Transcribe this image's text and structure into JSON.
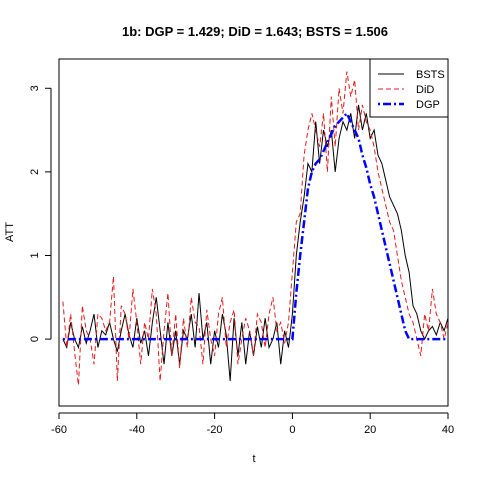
{
  "chart_data": {
    "type": "line",
    "title": "1b: DGP = 1.429; DiD = 1.643;  BSTS = 1.506",
    "xlabel": "t",
    "ylabel": "ATT",
    "xlim": [
      -60,
      40
    ],
    "ylim": [
      -0.8,
      3.35
    ],
    "x_ticks": [
      -60,
      -40,
      -20,
      0,
      20,
      40
    ],
    "y_ticks": [
      0,
      1,
      2,
      3
    ],
    "grid": false,
    "legend_position": "top-right",
    "x": [
      -59,
      -58,
      -57,
      -56,
      -55,
      -54,
      -53,
      -52,
      -51,
      -50,
      -49,
      -48,
      -47,
      -46,
      -45,
      -44,
      -43,
      -42,
      -41,
      -40,
      -39,
      -38,
      -37,
      -36,
      -35,
      -34,
      -33,
      -32,
      -31,
      -30,
      -29,
      -28,
      -27,
      -26,
      -25,
      -24,
      -23,
      -22,
      -21,
      -20,
      -19,
      -18,
      -17,
      -16,
      -15,
      -14,
      -13,
      -12,
      -11,
      -10,
      -9,
      -8,
      -7,
      -6,
      -5,
      -4,
      -3,
      -2,
      -1,
      0,
      1,
      2,
      3,
      4,
      5,
      6,
      7,
      8,
      9,
      10,
      11,
      12,
      13,
      14,
      15,
      16,
      17,
      18,
      19,
      20,
      21,
      22,
      23,
      24,
      25,
      26,
      27,
      28,
      29,
      30,
      31,
      32,
      33,
      34,
      35,
      36,
      37,
      38,
      39,
      40
    ],
    "series": [
      {
        "name": "BSTS",
        "color": "#000000",
        "dash": "solid",
        "values": [
          0.0,
          -0.1,
          0.2,
          0.0,
          -0.1,
          0.15,
          -0.05,
          0.1,
          0.3,
          -0.1,
          0.1,
          0.05,
          0.2,
          0.0,
          -0.15,
          0.1,
          0.3,
          0.05,
          -0.1,
          0.25,
          -0.05,
          0.1,
          -0.2,
          0.2,
          0.5,
          0.1,
          -0.3,
          0.2,
          -0.2,
          0.1,
          -0.3,
          0.1,
          0.0,
          0.3,
          -0.1,
          0.55,
          0.0,
          0.2,
          -0.3,
          0.1,
          -0.1,
          0.3,
          0.05,
          -0.5,
          0.25,
          -0.2,
          0.2,
          -0.3,
          0.1,
          -0.2,
          0.15,
          -0.1,
          0.25,
          -0.1,
          0.0,
          0.2,
          -0.3,
          0.1,
          -0.1,
          0.3,
          1.0,
          1.4,
          1.7,
          2.1,
          2.0,
          2.6,
          2.1,
          2.5,
          2.3,
          2.5,
          2.0,
          2.4,
          2.6,
          2.5,
          2.7,
          2.4,
          2.8,
          2.5,
          2.7,
          2.4,
          2.5,
          2.2,
          2.1,
          1.9,
          1.7,
          1.6,
          1.5,
          1.3,
          1.0,
          0.8,
          0.4,
          0.3,
          0.1,
          0.0,
          0.1,
          0.15,
          0.05,
          0.2,
          0.1,
          0.25
        ]
      },
      {
        "name": "DiD",
        "color": "#e41a1c",
        "dash": "dashed",
        "values": [
          0.45,
          -0.1,
          0.3,
          -0.15,
          -0.55,
          0.4,
          0.1,
          0.0,
          -0.3,
          0.3,
          0.25,
          0.1,
          0.2,
          0.75,
          -0.5,
          0.4,
          0.3,
          0.0,
          0.6,
          0.2,
          -0.3,
          0.2,
          0.0,
          0.6,
          0.3,
          -0.5,
          0.1,
          0.55,
          -0.2,
          0.3,
          -0.35,
          0.25,
          -0.1,
          0.5,
          0.2,
          0.15,
          -0.3,
          0.35,
          0.0,
          -0.2,
          0.3,
          0.5,
          -0.1,
          0.2,
          0.35,
          -0.3,
          0.0,
          0.25,
          0.1,
          -0.2,
          0.3,
          0.2,
          -0.1,
          0.3,
          0.5,
          0.1,
          0.2,
          -0.05,
          0.2,
          0.8,
          1.4,
          1.5,
          2.2,
          2.5,
          2.7,
          2.5,
          2.3,
          2.7,
          2.0,
          2.9,
          2.3,
          3.0,
          2.7,
          3.2,
          2.9,
          3.1,
          2.5,
          2.8,
          2.6,
          2.5,
          2.3,
          2.0,
          1.8,
          1.6,
          1.4,
          1.3,
          1.0,
          0.7,
          0.5,
          0.3,
          0.2,
          0.0,
          -0.2,
          0.3,
          0.1,
          0.6,
          0.3,
          0.2,
          0.0,
          0.2
        ]
      },
      {
        "name": "DGP",
        "color": "#0000ff",
        "dash": "dotdash",
        "values": [
          0,
          0,
          0,
          0,
          0,
          0,
          0,
          0,
          0,
          0,
          0,
          0,
          0,
          0,
          0,
          0,
          0,
          0,
          0,
          0,
          0,
          0,
          0,
          0,
          0,
          0,
          0,
          0,
          0,
          0,
          0,
          0,
          0,
          0,
          0,
          0,
          0,
          0,
          0,
          0,
          0,
          0,
          0,
          0,
          0,
          0,
          0,
          0,
          0,
          0,
          0,
          0,
          0,
          0,
          0,
          0,
          0,
          0,
          0,
          0,
          0.55,
          1.0,
          1.4,
          1.8,
          2.0,
          2.1,
          2.15,
          2.25,
          2.35,
          2.45,
          2.55,
          2.6,
          2.65,
          2.7,
          2.6,
          2.5,
          2.4,
          2.2,
          2.05,
          1.85,
          1.7,
          1.5,
          1.3,
          1.1,
          0.9,
          0.7,
          0.5,
          0.3,
          0.1,
          0.0,
          0.0,
          0.0,
          0.0,
          0.0,
          0.0,
          0.0,
          0.0,
          0.0,
          0.0,
          0.0
        ]
      }
    ]
  }
}
